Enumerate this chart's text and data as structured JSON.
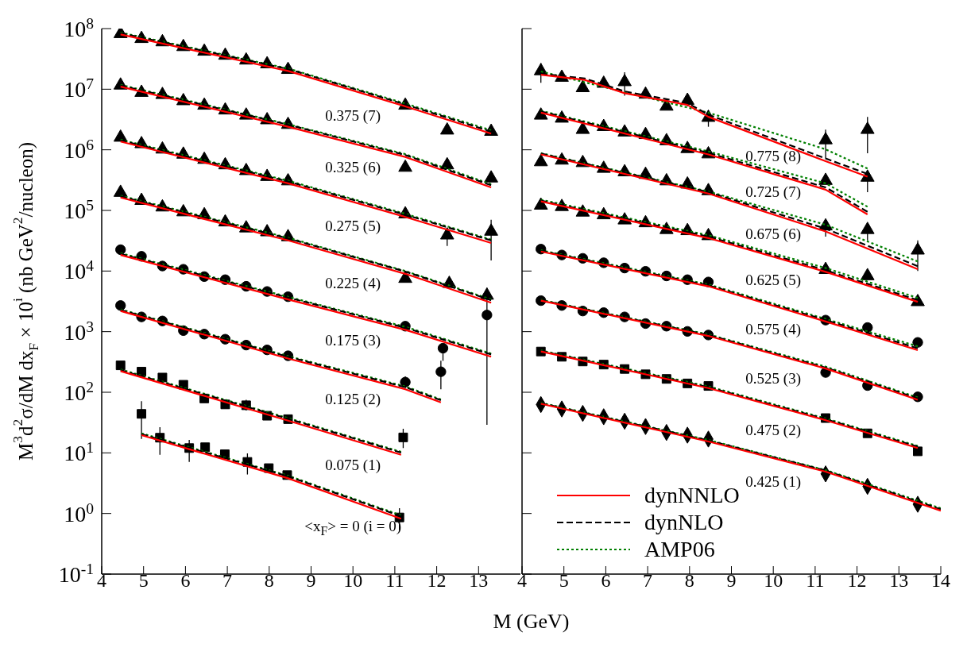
{
  "chart_data": [
    {
      "type": "scatter",
      "xlabel": "M (GeV)",
      "ylabel": "M$^{3}$d$^{2}$σ/dM dx$_{F}$ × 10$^{i}$ (nb GeV$^{2}$/nucleon)",
      "log": "y",
      "xlim": [
        4,
        14
      ],
      "xticks": [
        4,
        5,
        6,
        7,
        8,
        9,
        10,
        11,
        12,
        13
      ],
      "ylim": [
        0.1,
        100000000
      ],
      "yticks": [
        {
          "value": 0.1,
          "label": "10$^{-1}$"
        },
        {
          "value": 1,
          "label": "10$^{0}$"
        },
        {
          "value": 10,
          "label": "10$^{1}$"
        },
        {
          "value": 100,
          "label": "10$^{2}$"
        },
        {
          "value": 1000,
          "label": "10$^{3}$"
        },
        {
          "value": 10000,
          "label": "10$^{4}$"
        },
        {
          "value": 100000,
          "label": "10$^{5}$"
        },
        {
          "value": 1000000,
          "label": "10$^{6}$"
        },
        {
          "value": 10000000,
          "label": "10$^{7}$"
        },
        {
          "value": 100000000,
          "label": "10$^{8}$"
        }
      ],
      "annotations": [
        "0.375 (7)",
        "0.325 (6)",
        "0.275 (5)",
        "0.225 (4)",
        "0.175 (3)",
        "0.125 (2)",
        "0.075 (1)",
        "<x$_{F}$> = 0 (i = 0)"
      ],
      "series": [
        {
          "type": "line",
          "color": "#ff0000",
          "line_style": "solid",
          "x": [
            4.45,
            8.45,
            11.25,
            13.3
          ],
          "values": [
            80000000.0,
            20000000.0,
            5200000.0,
            1850000.0
          ]
        },
        {
          "type": "line",
          "color": "#000000",
          "line_style": "dashed",
          "x": [
            4.45,
            8.45,
            11.25,
            13.3
          ],
          "values": [
            84000000.0,
            21500000.0,
            5600000.0,
            2000000.0
          ]
        },
        {
          "type": "line",
          "color": "#008000",
          "line_style": "dotted",
          "x": [
            4.45,
            8.45,
            11.25,
            13.3
          ],
          "values": [
            86000000.0,
            22000000.0,
            5800000.0,
            2100000.0
          ]
        },
        {
          "type": "line",
          "color": "#ff0000",
          "line_style": "solid",
          "x": [
            4.45,
            8.45,
            11.25,
            13.3
          ],
          "values": [
            11000000.0,
            2400000.0,
            760000.0,
            240000.0
          ]
        },
        {
          "type": "line",
          "color": "#000000",
          "line_style": "dashed",
          "x": [
            4.45,
            8.45,
            11.25,
            13.3
          ],
          "values": [
            11500000.0,
            2600000.0,
            820000.0,
            260000.0
          ]
        },
        {
          "type": "line",
          "color": "#008000",
          "line_style": "dotted",
          "x": [
            4.45,
            8.45,
            11.25,
            13.3
          ],
          "values": [
            11800000.0,
            2650000.0,
            850000.0,
            270000.0
          ]
        },
        {
          "type": "line",
          "color": "#ff0000",
          "line_style": "solid",
          "x": [
            4.45,
            8.45,
            11.25,
            13.3
          ],
          "values": [
            1370000.0,
            280000.0,
            78000.0,
            29000.0
          ]
        },
        {
          "type": "line",
          "color": "#000000",
          "line_style": "dashed",
          "x": [
            4.45,
            8.45,
            11.25,
            13.3
          ],
          "values": [
            1430000.0,
            300000.0,
            85000.0,
            32000.0
          ]
        },
        {
          "type": "line",
          "color": "#008000",
          "line_style": "dotted",
          "x": [
            4.45,
            8.45,
            11.25,
            13.3
          ],
          "values": [
            1470000.0,
            310000.0,
            88000.0,
            33000.0
          ]
        },
        {
          "type": "line",
          "color": "#ff0000",
          "line_style": "solid",
          "x": [
            4.45,
            8.45,
            11.25,
            13.3
          ],
          "values": [
            163000.0,
            32000.0,
            9000.0,
            3000.0
          ]
        },
        {
          "type": "line",
          "color": "#000000",
          "line_style": "dashed",
          "x": [
            4.45,
            8.45,
            11.25,
            13.3
          ],
          "values": [
            170000.0,
            34500.0,
            9800.0,
            3300.0
          ]
        },
        {
          "type": "line",
          "color": "#008000",
          "line_style": "dotted",
          "x": [
            4.45,
            8.45,
            11.25,
            13.3
          ],
          "values": [
            175000.0,
            35500.0,
            10000.0,
            3400.0
          ]
        },
        {
          "type": "line",
          "color": "#ff0000",
          "line_style": "solid",
          "x": [
            4.45,
            8.45,
            11.25,
            13.3
          ],
          "values": [
            18400.0,
            3400.0,
            1070.0,
            385
          ]
        },
        {
          "type": "line",
          "color": "#000000",
          "line_style": "dashed",
          "x": [
            4.45,
            8.45,
            11.25,
            13.3
          ],
          "values": [
            19200.0,
            3650.0,
            1160.0,
            420
          ]
        },
        {
          "type": "line",
          "color": "#008000",
          "line_style": "dotted",
          "x": [
            4.45,
            8.45,
            11.25,
            13.3
          ],
          "values": [
            19700.0,
            3750.0,
            1200.0,
            435
          ]
        },
        {
          "type": "line",
          "color": "#ff0000",
          "line_style": "solid",
          "x": [
            4.45,
            8.45,
            11.25,
            12.1
          ],
          "values": [
            2190,
            360,
            112,
            68
          ]
        },
        {
          "type": "line",
          "color": "#000000",
          "line_style": "dashed",
          "x": [
            4.45,
            8.45,
            11.25,
            12.1
          ],
          "values": [
            2280,
            385,
            121,
            74
          ]
        },
        {
          "type": "line",
          "color": "#008000",
          "line_style": "dotted",
          "x": [
            4.45,
            8.45,
            11.25,
            12.1
          ],
          "values": [
            2330,
            395,
            125,
            76
          ]
        },
        {
          "type": "line",
          "color": "#ff0000",
          "line_style": "solid",
          "x": [
            4.45,
            8.45,
            11.15
          ],
          "values": [
            223,
            34,
            9.3
          ]
        },
        {
          "type": "line",
          "color": "#000000",
          "line_style": "dashed",
          "x": [
            4.45,
            8.45,
            11.15
          ],
          "values": [
            232,
            36.5,
            10.1
          ]
        },
        {
          "type": "line",
          "color": "#008000",
          "line_style": "dotted",
          "x": [
            4.45,
            8.45,
            11.15
          ],
          "values": [
            238,
            37.5,
            10.4
          ]
        },
        {
          "type": "line",
          "color": "#ff0000",
          "line_style": "solid",
          "x": [
            4.95,
            8.45,
            11.15
          ],
          "values": [
            19.6,
            3.8,
            0.82
          ]
        },
        {
          "type": "line",
          "color": "#000000",
          "line_style": "dashed",
          "x": [
            4.95,
            8.45,
            11.15
          ],
          "values": [
            20.4,
            4.1,
            0.9
          ]
        },
        {
          "type": "line",
          "color": "#008000",
          "line_style": "dotted",
          "x": [
            4.95,
            8.45,
            11.15
          ],
          "values": [
            21,
            4.2,
            0.93
          ]
        },
        {
          "color": "#000000",
          "marker": "triangle",
          "x": [
            4.45,
            4.95,
            5.45,
            5.95,
            6.45,
            6.95,
            7.45,
            7.95,
            8.45,
            11.25,
            12.25,
            13.3
          ],
          "values": [
            82000000.0,
            68000000.0,
            60000000.0,
            50000000.0,
            42000000.0,
            36000000.0,
            30000000.0,
            26000000.0,
            21000000.0,
            5400000.0,
            2100000.0,
            2000000.0
          ]
        },
        {
          "color": "#000000",
          "marker": "triangle",
          "x": [
            4.45,
            4.95,
            5.45,
            5.95,
            6.45,
            6.95,
            7.45,
            7.95,
            8.45,
            11.25,
            12.25,
            13.3
          ],
          "values": [
            11600000.0,
            8800000.0,
            8100000.0,
            6400000.0,
            5400000.0,
            4500000.0,
            3700000.0,
            3100000.0,
            2600000.0,
            510000.0,
            560000.0,
            340000.0
          ]
        },
        {
          "color": "#000000",
          "marker": "triangle",
          "x": [
            4.45,
            4.95,
            5.45,
            5.95,
            6.45,
            6.95,
            7.45,
            7.95,
            8.45,
            11.25,
            12.25,
            13.3
          ],
          "values": [
            1600000.0,
            1250000.0,
            1020000.0,
            840000.0,
            690000.0,
            560000.0,
            450000.0,
            360000.0,
            305000.0,
            87000.0,
            39000.0,
            45000.0
          ],
          "errors": [
            null,
            null,
            null,
            null,
            null,
            null,
            null,
            null,
            null,
            null,
            [
              26000,
              45000
            ],
            [
              15000,
              70000
            ]
          ]
        },
        {
          "color": "#000000",
          "marker": "triangle",
          "x": [
            4.45,
            4.95,
            5.45,
            5.95,
            6.45,
            6.95,
            7.45,
            7.95,
            8.45,
            11.25,
            12.3,
            13.2
          ],
          "values": [
            197000.0,
            145000.0,
            113000.0,
            94000.0,
            84000.0,
            64000.0,
            51000.0,
            44000.0,
            36500.0,
            7500.0,
            6200.0,
            3960.0
          ]
        },
        {
          "color": "#000000",
          "marker": "circle",
          "x": [
            4.45,
            4.95,
            5.45,
            5.95,
            6.45,
            6.95,
            7.45,
            7.95,
            8.45,
            11.25,
            12.15,
            13.2
          ],
          "values": [
            22500.0,
            17500.0,
            12100.0,
            10700.0,
            8100.0,
            7200.0,
            5600.0,
            4600.0,
            3770.0,
            1230.0,
            533,
            1880.0
          ],
          "errors": [
            null,
            null,
            null,
            null,
            null,
            null,
            null,
            null,
            null,
            null,
            [
              330,
              600
            ],
            [
              29,
              5300
            ]
          ]
        },
        {
          "color": "#000000",
          "marker": "circle",
          "x": [
            4.45,
            4.95,
            5.45,
            5.95,
            6.45,
            6.95,
            7.45,
            7.95,
            8.45,
            11.25,
            12.1
          ],
          "values": [
            2700,
            1750,
            1500,
            1040,
            910,
            750,
            600,
            500,
            400,
            147,
            218
          ],
          "errors": [
            null,
            null,
            null,
            null,
            null,
            null,
            null,
            null,
            null,
            [
              115,
              183
            ],
            [
              112,
              332
            ]
          ]
        },
        {
          "color": "#000000",
          "marker": "square",
          "x": [
            4.45,
            4.95,
            5.45,
            5.95,
            6.45,
            6.95,
            7.45,
            7.95,
            8.45,
            11.2
          ],
          "values": [
            278,
            219,
            175,
            133,
            79,
            63,
            61,
            41,
            36,
            18
          ],
          "errors": [
            null,
            null,
            null,
            null,
            null,
            null,
            [
              50,
              75
            ],
            null,
            null,
            [
              12,
              25
            ]
          ]
        },
        {
          "color": "#000000",
          "marker": "square",
          "x": [
            4.95,
            5.39,
            6.09,
            6.47,
            6.94,
            7.48,
            7.99,
            8.43,
            11.11
          ],
          "values": [
            44,
            17.8,
            12,
            12.4,
            9.5,
            7.1,
            5.6,
            4.3,
            0.86
          ],
          "errors": [
            [
              17,
              71
            ],
            [
              9.3,
              26.5
            ],
            [
              7.1,
              16.4
            ],
            null,
            null,
            [
              4.4,
              9.8
            ],
            null,
            null,
            [
              0.53,
              1.22
            ]
          ]
        }
      ]
    },
    {
      "type": "scatter",
      "log": "y",
      "tick_labels": "x",
      "legend": "bottom left",
      "xlim": [
        4,
        14
      ],
      "xticks": [
        4,
        5,
        6,
        7,
        8,
        9,
        10,
        11,
        12,
        13,
        14
      ],
      "ylim": [
        0.1,
        100000000
      ],
      "yticks": [
        {
          "value": 0.1,
          "label": null
        },
        {
          "value": 1,
          "label": null
        },
        {
          "value": 10,
          "label": null
        },
        {
          "value": 100,
          "label": null
        },
        {
          "value": 1000,
          "label": null
        },
        {
          "value": 10000,
          "label": null
        },
        {
          "value": 100000,
          "label": null
        },
        {
          "value": 1000000,
          "label": null
        },
        {
          "value": 10000000,
          "label": null
        },
        {
          "value": 100000000,
          "label": null
        }
      ],
      "annotations": [
        "0.775 (8)",
        "0.725 (7)",
        "0.675 (6)",
        "0.625 (5)",
        "0.575 (4)",
        "0.525 (3)",
        "0.475 (2)",
        "0.425 (1)"
      ],
      "series": [
        {
          "type": "line",
          "color": "#ff0000",
          "line_style": "solid",
          "x": [
            4.45,
            5.5,
            6.45,
            7.95,
            8.45,
            11.25,
            12.25
          ],
          "values": [
            17300000.0,
            14200000.0,
            8600000.0,
            5500000.0,
            3500000.0,
            650000.0,
            360000.0
          ]
        },
        {
          "type": "line",
          "color": "#000000",
          "line_style": "dashed",
          "x": [
            4.45,
            5.5,
            6.45,
            7.95,
            8.45,
            11.25,
            12.25
          ],
          "values": [
            18000000.0,
            15000000.0,
            9200000.0,
            5900000.0,
            3800000.0,
            720000.0,
            400000.0
          ]
        },
        {
          "type": "line",
          "color": "#008000",
          "line_style": "dotted",
          "x": [
            4.45,
            8.45,
            11.25,
            12.25
          ],
          "values": [
            19600000.0,
            4100000.0,
            1020000.0,
            490000.0
          ]
        },
        {
          "type": "line",
          "color": "#ff0000",
          "line_style": "solid",
          "x": [
            4.45,
            8.45,
            11.25,
            12.25
          ],
          "values": [
            4100000.0,
            840000.0,
            220000.0,
            86000.0
          ]
        },
        {
          "type": "line",
          "color": "#000000",
          "line_style": "dashed",
          "x": [
            4.45,
            8.45,
            11.25,
            12.25
          ],
          "values": [
            4300000.0,
            890000.0,
            240000.0,
            95000.0
          ]
        },
        {
          "type": "line",
          "color": "#008000",
          "line_style": "dotted",
          "x": [
            4.45,
            8.45,
            11.25,
            12.25
          ],
          "values": [
            4400000.0,
            940000.0,
            280000.0,
            115000.0
          ]
        },
        {
          "type": "line",
          "color": "#ff0000",
          "line_style": "solid",
          "x": [
            4.45,
            8.45,
            11.25,
            13.45
          ],
          "values": [
            840000.0,
            190000.0,
            45000.0,
            10700.0
          ]
        },
        {
          "type": "line",
          "color": "#000000",
          "line_style": "dashed",
          "x": [
            4.45,
            8.45,
            11.25,
            13.45
          ],
          "values": [
            870000.0,
            200000.0,
            50000.0,
            12000.0
          ]
        },
        {
          "type": "line",
          "color": "#008000",
          "line_style": "dotted",
          "x": [
            4.45,
            8.45,
            11.25,
            13.45
          ],
          "values": [
            880000.0,
            205000.0,
            58000.0,
            14400.0
          ]
        },
        {
          "type": "line",
          "color": "#ff0000",
          "line_style": "solid",
          "x": [
            4.45,
            8.45,
            11.25,
            13.45
          ],
          "values": [
            141000.0,
            35000.0,
            9700.0,
            3100.0
          ]
        },
        {
          "type": "line",
          "color": "#000000",
          "line_style": "dashed",
          "x": [
            4.45,
            8.45,
            11.25,
            13.45
          ],
          "values": [
            145000.0,
            37000.0,
            10300.0,
            3300.0
          ]
        },
        {
          "type": "line",
          "color": "#008000",
          "line_style": "dotted",
          "x": [
            4.45,
            8.45,
            11.25,
            13.45
          ],
          "values": [
            150000.0,
            39000.0,
            11200.0,
            3600.0
          ]
        },
        {
          "type": "line",
          "color": "#ff0000",
          "line_style": "solid",
          "x": [
            4.45,
            8.45,
            11.25,
            13.45
          ],
          "values": [
            21000.0,
            5600.0,
            1470.0,
            494
          ]
        },
        {
          "type": "line",
          "color": "#000000",
          "line_style": "dashed",
          "x": [
            4.45,
            8.45,
            11.25,
            13.45
          ],
          "values": [
            21500.0,
            5800.0,
            1550.0,
            530
          ]
        },
        {
          "type": "line",
          "color": "#008000",
          "line_style": "dotted",
          "x": [
            4.45,
            8.45,
            11.25,
            13.45
          ],
          "values": [
            22000.0,
            6000.0,
            1620.0,
            573
          ]
        },
        {
          "type": "line",
          "color": "#ff0000",
          "line_style": "solid",
          "x": [
            4.45,
            8.45,
            11.25,
            13.45
          ],
          "values": [
            3250,
            850,
            246,
            75
          ]
        },
        {
          "type": "line",
          "color": "#000000",
          "line_style": "dashed",
          "x": [
            4.45,
            8.45,
            11.25,
            13.45
          ],
          "values": [
            3300,
            880,
            255,
            79
          ]
        },
        {
          "type": "line",
          "color": "#008000",
          "line_style": "dotted",
          "x": [
            4.45,
            8.45,
            11.25,
            13.45
          ],
          "values": [
            3350,
            900,
            265,
            82
          ]
        },
        {
          "type": "line",
          "color": "#ff0000",
          "line_style": "solid",
          "x": [
            4.45,
            8.45,
            11.25,
            13.45
          ],
          "values": [
            470,
            117,
            34.6,
            12
          ]
        },
        {
          "type": "line",
          "color": "#000000",
          "line_style": "dashed",
          "x": [
            4.45,
            8.45,
            11.25,
            13.45
          ],
          "values": [
            480,
            121,
            36,
            12.6
          ]
        },
        {
          "type": "line",
          "color": "#008000",
          "line_style": "dotted",
          "x": [
            4.45,
            8.45,
            11.25,
            13.45
          ],
          "values": [
            490,
            125,
            37,
            13
          ]
        },
        {
          "type": "line",
          "name": "dynNNLO",
          "color": "#ff0000",
          "line_style": "solid",
          "x": [
            4.45,
            8.45,
            11.25,
            14
          ],
          "values": [
            64.5,
            15.4,
            4.9,
            1.11
          ]
        },
        {
          "type": "line",
          "name": "dynNLO",
          "color": "#000000",
          "line_style": "dashed",
          "x": [
            4.45,
            8.45,
            11.25,
            14
          ],
          "values": [
            66,
            16,
            5.1,
            1.17
          ]
        },
        {
          "type": "line",
          "name": "AMP06",
          "color": "#008000",
          "line_style": "dotted",
          "x": [
            4.45,
            8.45,
            11.25,
            14
          ],
          "values": [
            67,
            16.3,
            5.2,
            1.22
          ]
        },
        {
          "color": "#000000",
          "marker": "triangle",
          "x": [
            4.45,
            4.95,
            5.45,
            5.95,
            6.45,
            6.95,
            7.45,
            7.95,
            8.45,
            11.25,
            12.25
          ],
          "values": [
            20000000.0,
            15600000.0,
            10500000.0,
            12400000.0,
            13200000.0,
            8200000.0,
            5200000.0,
            6500000.0,
            3400000.0,
            1450000.0,
            2150000.0
          ],
          "errors": [
            [
              12800000.0,
              27000000.0
            ],
            null,
            null,
            null,
            [
              7800000.0,
              19000000.0
            ],
            null,
            null,
            [
              5200000.0,
              8200000.0
            ],
            [
              2400000.0,
              4500000.0
            ],
            [
              720000.0,
              2150000.0
            ],
            [
              880000.0,
              3500000.0
            ]
          ]
        },
        {
          "color": "#000000",
          "marker": "triangle",
          "x": [
            4.45,
            4.95,
            5.45,
            5.95,
            6.45,
            6.95,
            7.45,
            7.95,
            8.45,
            11.25,
            12.25
          ],
          "values": [
            3700000.0,
            3300000.0,
            2150000.0,
            2400000.0,
            1950000.0,
            1770000.0,
            1400000.0,
            1040000.0,
            850000.0,
            310000.0,
            350000.0
          ],
          "errors": [
            null,
            null,
            null,
            null,
            null,
            null,
            null,
            null,
            null,
            null,
            [
              200000.0,
              440000.0
            ]
          ]
        },
        {
          "color": "#000000",
          "marker": "triangle",
          "x": [
            4.45,
            4.95,
            5.45,
            5.95,
            6.45,
            6.95,
            7.45,
            7.95,
            8.45,
            11.25,
            12.25,
            13.45
          ],
          "values": [
            630000.0,
            670000.0,
            610000.0,
            490000.0,
            430000.0,
            390000.0,
            305000.0,
            270000.0,
            210000.0,
            55000.0,
            48000.0,
            22000.0
          ],
          "errors": [
            null,
            null,
            null,
            null,
            null,
            null,
            null,
            null,
            null,
            [
              37000.0,
              67000.0
            ],
            [
              32000.0,
              61000.0
            ],
            [
              10000.0,
              32000.0
            ]
          ]
        },
        {
          "color": "#000000",
          "marker": "triangle",
          "x": [
            4.45,
            4.95,
            5.45,
            5.95,
            6.45,
            6.95,
            7.45,
            7.95,
            8.45,
            11.25,
            12.25,
            13.45
          ],
          "values": [
            121000.0,
            115000.0,
            93000.0,
            84000.0,
            69000.0,
            62000.0,
            48000.0,
            46000.0,
            38000.0,
            10500.0,
            8300.0,
            3100.0
          ]
        },
        {
          "color": "#000000",
          "marker": "circle",
          "x": [
            4.45,
            4.95,
            5.45,
            5.95,
            6.45,
            6.95,
            7.45,
            7.95,
            8.45,
            11.25,
            12.25,
            13.45
          ],
          "values": [
            23000.0,
            18400.0,
            16200.0,
            13700.0,
            11200.0,
            9900.0,
            8300.0,
            7200.0,
            6600.0,
            1550,
            1170,
            665
          ]
        },
        {
          "color": "#000000",
          "marker": "circle",
          "x": [
            4.45,
            4.95,
            5.45,
            5.95,
            6.45,
            6.95,
            7.45,
            7.95,
            8.45,
            11.25,
            12.25,
            13.45
          ],
          "values": [
            3250,
            2700,
            2190,
            2060,
            1750,
            1360,
            1230,
            1010,
            880,
            212,
            129,
            84
          ]
        },
        {
          "color": "#000000",
          "marker": "square",
          "x": [
            4.45,
            4.95,
            5.45,
            5.95,
            6.45,
            6.95,
            7.45,
            7.95,
            8.45,
            11.25,
            12.25,
            13.45
          ],
          "values": [
            470,
            385,
            322,
            286,
            242,
            198,
            166,
            140,
            127,
            37.5,
            21,
            10.6
          ]
        },
        {
          "color": "#000000",
          "marker": "diamond",
          "x": [
            4.45,
            4.95,
            5.45,
            5.95,
            6.45,
            6.95,
            7.45,
            7.95,
            8.45,
            11.25,
            12.25,
            13.45
          ],
          "values": [
            62.7,
            53,
            44.8,
            39.4,
            33.3,
            27.2,
            21.7,
            19.6,
            16.9,
            4.5,
            2.8,
            1.42
          ]
        }
      ]
    }
  ]
}
